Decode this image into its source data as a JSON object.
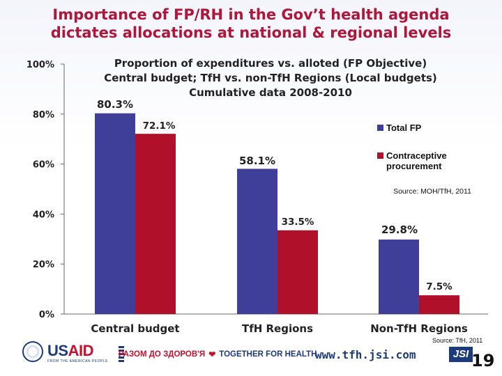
{
  "slide": {
    "title_line1": "Importance of FP/RH in the Gov’t health agenda",
    "title_line2": "dictates allocations at national & regional levels",
    "page_number": "19"
  },
  "footer": {
    "source": "Source: TfH, 2011",
    "usaid_prefix": "US",
    "usaid_suffix": "AID",
    "usaid_tagline": "FROM THE AMERICAN PEOPLE",
    "tfh_ua": "РАЗОМ ДО ЗДОРОВ'Я",
    "tfh_en": "TOGETHER FOR HEALTH",
    "website": "www.tfh.jsi.com",
    "jsi": "JSI"
  },
  "colors": {
    "title": "#b0163a",
    "series1": "#3f3f9a",
    "series2": "#b0102a"
  },
  "chart_data": {
    "type": "bar",
    "title_lines": [
      "Proportion of expenditures vs. alloted (FP Objective)",
      "Central budget; TfH vs. non-TfH Regions (Local budgets)",
      "Cumulative data 2008-2010"
    ],
    "categories": [
      "Central budget",
      "TfH Regions",
      "Non-TfH Regions"
    ],
    "series": [
      {
        "name": "Total FP",
        "values": [
          80.3,
          58.1,
          29.8
        ],
        "labels": [
          "80.3%",
          "58.1%",
          "29.8%"
        ]
      },
      {
        "name": "Contraceptive procurement",
        "values": [
          72.1,
          33.5,
          7.5
        ],
        "labels": [
          "72.1%",
          "33.5%",
          "7.5%"
        ]
      }
    ],
    "legend_lines": [
      [
        "Total FP"
      ],
      [
        "Contraceptive",
        "procurement"
      ]
    ],
    "yticks": [
      0,
      20,
      40,
      60,
      80,
      100
    ],
    "ytick_labels": [
      "0%",
      "20%",
      "40%",
      "60%",
      "80%",
      "100%"
    ],
    "ylim": [
      0,
      100
    ],
    "source_note": "Source: MOH/TfH, 2011",
    "legend_position": "right"
  }
}
